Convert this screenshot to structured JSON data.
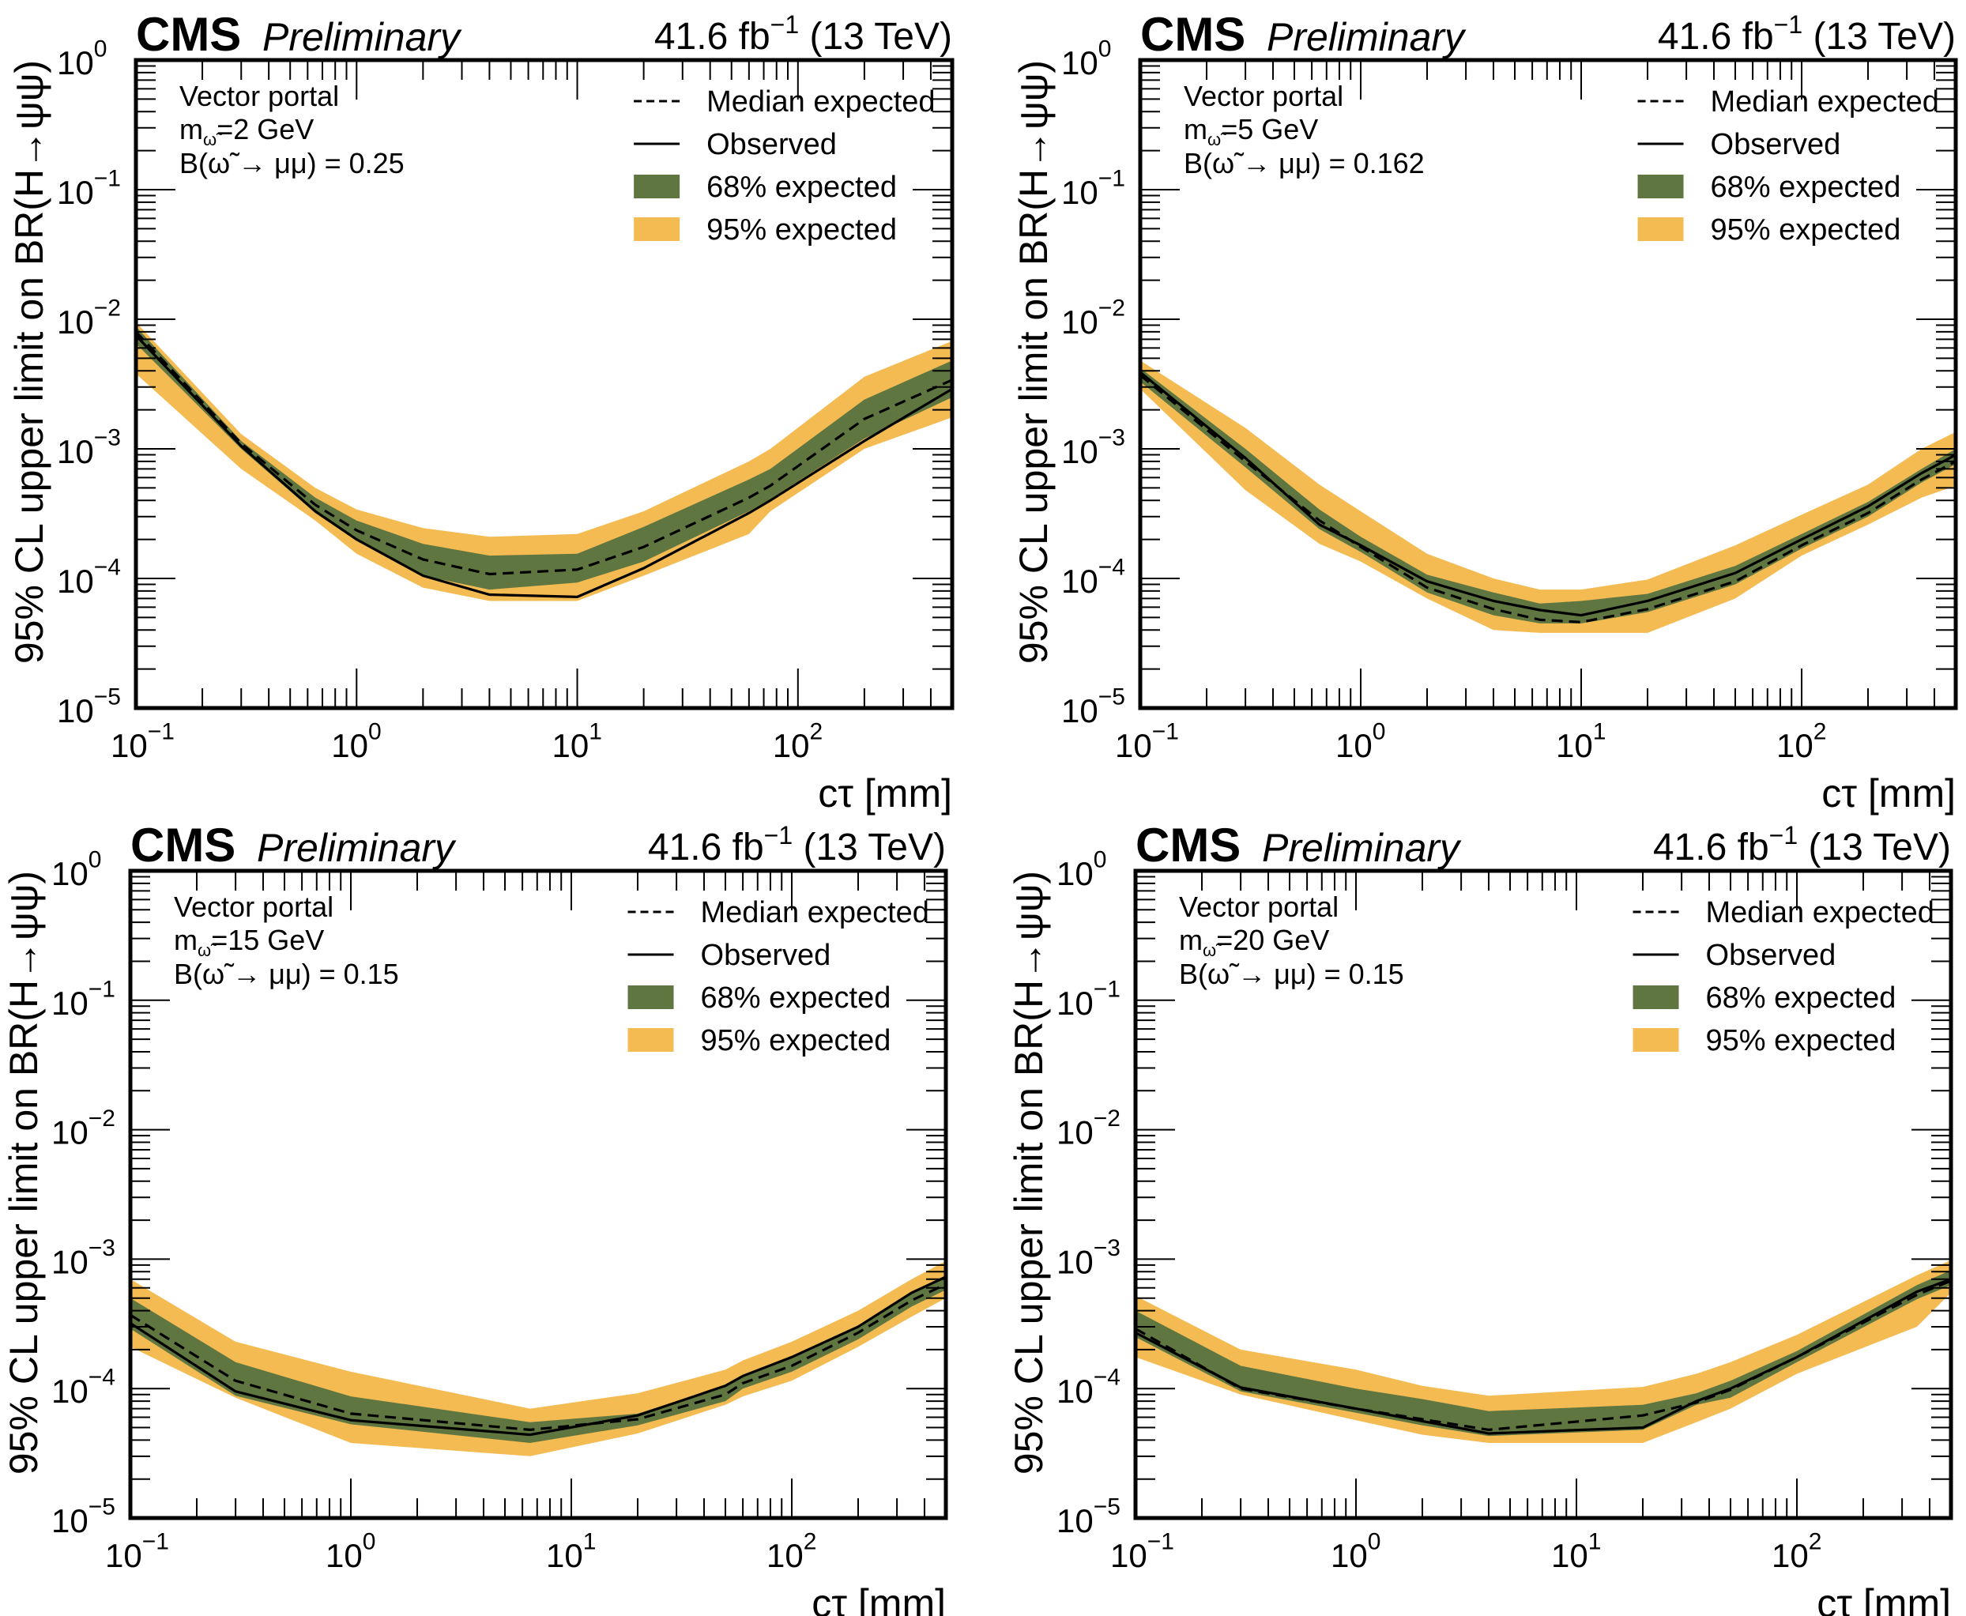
{
  "figure": {
    "experiment_label": "CMS",
    "status_label": "Preliminary",
    "lumi_label": "41.6 fb",
    "lumi_exponent": "−1",
    "energy_label": "(13 TeV)",
    "xlabel": "cτ [mm]",
    "ylabel": "95% CL upper limit on BR(H→ψψ)",
    "model_label": "Vector portal",
    "legend": [
      {
        "label": "Median expected",
        "style": "dashed",
        "color": "#000000"
      },
      {
        "label": "Observed",
        "style": "solid",
        "color": "#000000"
      },
      {
        "label": "68% expected",
        "style": "band",
        "color": "#607641"
      },
      {
        "label": "95% expected",
        "style": "band",
        "color": "#F4BB53"
      }
    ],
    "x_tick_labels": [
      {
        "base": "10",
        "exp": "−1"
      },
      {
        "base": "10",
        "exp": "0"
      },
      {
        "base": "10",
        "exp": "1"
      },
      {
        "base": "10",
        "exp": "2"
      }
    ],
    "y_tick_labels": [
      {
        "base": "10",
        "exp": "0"
      },
      {
        "base": "10",
        "exp": "−1"
      },
      {
        "base": "10",
        "exp": "−2"
      },
      {
        "base": "10",
        "exp": "−3"
      },
      {
        "base": "10",
        "exp": "−4"
      },
      {
        "base": "10",
        "exp": "−5"
      }
    ]
  },
  "chart_data": [
    {
      "type": "area",
      "title": "CMS Preliminary — 41.6 fb^-1 (13 TeV)",
      "mass_label": "=2 GeV",
      "br_label": "B(ω̃ → μμ) = 0.25",
      "xlabel": "cτ [mm]",
      "ylabel": "95% CL upper limit on BR(H→ψψ)",
      "xscale": "log",
      "yscale": "log",
      "xlim": [
        0.1,
        500
      ],
      "ylim": [
        1e-05,
        1
      ],
      "legend_position": "top-right",
      "x": [
        0.1,
        0.3,
        0.65,
        1,
        2,
        4,
        10,
        20,
        60,
        75,
        200,
        500
      ],
      "series": [
        {
          "name": "Observed",
          "values": [
            0.0075,
            0.00105,
            0.00033,
            0.0002,
            0.000105,
            7.5e-05,
            7.2e-05,
            0.00012,
            0.00032,
            0.0004,
            0.00115,
            0.0029
          ]
        },
        {
          "name": "Median expected",
          "values": [
            0.008,
            0.0011,
            0.00037,
            0.000235,
            0.00014,
            0.000108,
            0.000117,
            0.000175,
            0.00042,
            0.00052,
            0.0017,
            0.0034
          ]
        },
        {
          "name": "68% expected low",
          "values": [
            0.0065,
            0.001,
            0.00032,
            0.000195,
            0.000105,
            8.2e-05,
            9.3e-05,
            0.000135,
            0.00033,
            0.00041,
            0.0012,
            0.0025
          ]
        },
        {
          "name": "68% expected high",
          "values": [
            0.0088,
            0.00115,
            0.00042,
            0.00028,
            0.000185,
            0.00015,
            0.000155,
            0.00025,
            0.00058,
            0.0007,
            0.0024,
            0.0048
          ]
        },
        {
          "name": "95% expected low",
          "values": [
            0.0038,
            0.0007,
            0.00028,
            0.000155,
            8.5e-05,
            6.7e-05,
            6.7e-05,
            0.000105,
            0.00022,
            0.00033,
            0.001,
            0.00175
          ]
        },
        {
          "name": "95% expected high",
          "values": [
            0.0095,
            0.0013,
            0.0005,
            0.00034,
            0.000245,
            0.00021,
            0.00022,
            0.00033,
            0.0008,
            0.001,
            0.0036,
            0.0068
          ]
        }
      ]
    },
    {
      "type": "area",
      "title": "CMS Preliminary — 41.6 fb^-1 (13 TeV)",
      "mass_label": "=5 GeV",
      "br_label": "B(ω̃ → μμ) = 0.162",
      "xlabel": "cτ [mm]",
      "ylabel": "95% CL upper limit on BR(H→ψψ)",
      "xscale": "log",
      "yscale": "log",
      "xlim": [
        0.1,
        500
      ],
      "ylim": [
        1e-05,
        1
      ],
      "legend_position": "top-right",
      "x": [
        0.1,
        0.3,
        0.65,
        1,
        2,
        4,
        6.5,
        10,
        20,
        50,
        100,
        200,
        350,
        500
      ],
      "series": [
        {
          "name": "Observed",
          "values": [
            0.0039,
            0.00085,
            0.00026,
            0.00018,
            9.5e-05,
            6.7e-05,
            5.7e-05,
            5.2e-05,
            6.7e-05,
            0.00011,
            0.0002,
            0.00036,
            0.00065,
            0.0009
          ]
        },
        {
          "name": "Median expected",
          "values": [
            0.0037,
            0.0008,
            0.00028,
            0.000175,
            8.5e-05,
            5.8e-05,
            4.8e-05,
            4.6e-05,
            5.8e-05,
            9.5e-05,
            0.00018,
            0.00032,
            0.00058,
            0.0008
          ]
        },
        {
          "name": "68% expected low",
          "values": [
            0.0033,
            0.00072,
            0.00024,
            0.00016,
            7.8e-05,
            5.2e-05,
            4.5e-05,
            4.5e-05,
            5.5e-05,
            9e-05,
            0.00017,
            0.0003,
            0.00055,
            0.00076
          ]
        },
        {
          "name": "68% expected high",
          "values": [
            0.0042,
            0.001,
            0.00034,
            0.00021,
            0.000107,
            7.8e-05,
            6.4e-05,
            6.7e-05,
            7.6e-05,
            0.000125,
            0.00022,
            0.00039,
            0.0007,
            0.001
          ]
        },
        {
          "name": "95% expected low",
          "values": [
            0.0029,
            0.00048,
            0.000185,
            0.000135,
            7e-05,
            4e-05,
            3.8e-05,
            3.8e-05,
            3.8e-05,
            7e-05,
            0.00015,
            0.00026,
            0.00042,
            0.00052
          ]
        },
        {
          "name": "95% expected high",
          "values": [
            0.0048,
            0.00145,
            0.00053,
            0.00033,
            0.000155,
            0.0001,
            8.2e-05,
            8.2e-05,
            9.8e-05,
            0.00018,
            0.00031,
            0.00053,
            0.001,
            0.00135
          ]
        }
      ]
    },
    {
      "type": "area",
      "title": "CMS Preliminary — 41.6 fb^-1 (13 TeV)",
      "mass_label": "=15 GeV",
      "br_label": "B(ω̃ → μμ) = 0.15",
      "xlabel": "cτ [mm]",
      "ylabel": "95% CL upper limit on BR(H→ψψ)",
      "xscale": "log",
      "yscale": "log",
      "xlim": [
        0.1,
        500
      ],
      "ylim": [
        1e-05,
        1
      ],
      "legend_position": "top-right",
      "x": [
        0.1,
        0.3,
        1,
        6.5,
        20,
        50,
        60,
        100,
        200,
        350,
        500
      ],
      "series": [
        {
          "name": "Observed",
          "values": [
            0.00032,
            9.5e-05,
            5.7e-05,
            4.4e-05,
            6.2e-05,
            0.000105,
            0.000125,
            0.000175,
            0.0003,
            0.00055,
            0.00073
          ]
        },
        {
          "name": "Median expected",
          "values": [
            0.00037,
            0.000115,
            6.4e-05,
            4.8e-05,
            5.8e-05,
            9e-05,
            0.00011,
            0.00015,
            0.00027,
            0.00048,
            0.00064
          ]
        },
        {
          "name": "68% expected low",
          "values": [
            0.00029,
            8.8e-05,
            5.3e-05,
            3.8e-05,
            5.2e-05,
            8e-05,
            0.0001,
            0.000135,
            0.00024,
            0.00043,
            0.00058
          ]
        },
        {
          "name": "68% expected high",
          "values": [
            0.0005,
            0.00016,
            8.7e-05,
            5.5e-05,
            6.4e-05,
            0.000105,
            0.000125,
            0.000175,
            0.0003,
            0.00055,
            0.00075
          ]
        },
        {
          "name": "95% expected low",
          "values": [
            0.00021,
            8.5e-05,
            3.8e-05,
            3e-05,
            4.5e-05,
            7.5e-05,
            8.7e-05,
            0.000115,
            0.00021,
            0.00036,
            0.0005
          ]
        },
        {
          "name": "95% expected high",
          "values": [
            0.0007,
            0.00023,
            0.000135,
            7e-05,
            9.2e-05,
            0.00014,
            0.000165,
            0.00023,
            0.0004,
            0.0007,
            0.00097
          ]
        }
      ]
    },
    {
      "type": "area",
      "title": "CMS Preliminary — 41.6 fb^-1 (13 TeV)",
      "mass_label": "=20 GeV",
      "br_label": "B(ω̃ → μμ) = 0.15",
      "xlabel": "cτ [mm]",
      "ylabel": "95% CL upper limit on BR(H→ψψ)",
      "xscale": "log",
      "yscale": "log",
      "xlim": [
        0.1,
        500
      ],
      "ylim": [
        1e-05,
        1
      ],
      "legend_position": "top-right",
      "x": [
        0.1,
        0.3,
        1,
        2,
        4,
        20,
        35,
        50,
        100,
        350,
        500
      ],
      "series": [
        {
          "name": "Observed",
          "values": [
            0.00027,
            0.000102,
            7e-05,
            5.6e-05,
            4.5e-05,
            5e-05,
            8e-05,
            0.0001,
            0.000175,
            0.00056,
            0.0007
          ]
        },
        {
          "name": "Median expected",
          "values": [
            0.00029,
            0.0001,
            7e-05,
            5.8e-05,
            4.8e-05,
            6.2e-05,
            7.8e-05,
            9.8e-05,
            0.000175,
            0.00053,
            0.00068
          ]
        },
        {
          "name": "68% expected low",
          "values": [
            0.00025,
            9.5e-05,
            6.5e-05,
            5.2e-05,
            4.3e-05,
            4.8e-05,
            7.5e-05,
            8.5e-05,
            0.00016,
            0.00049,
            0.00063
          ]
        },
        {
          "name": "68% expected high",
          "values": [
            0.0004,
            0.00015,
            0.0001,
            8.3e-05,
            6.7e-05,
            7.5e-05,
            9.2e-05,
            0.000115,
            0.000195,
            0.00063,
            0.00082
          ]
        },
        {
          "name": "95% expected low",
          "values": [
            0.000175,
            9e-05,
            5.7e-05,
            4.4e-05,
            3.8e-05,
            3.8e-05,
            5.5e-05,
            7e-05,
            0.00013,
            0.0003,
            0.00055
          ]
        },
        {
          "name": "95% expected high",
          "values": [
            0.00052,
            0.0002,
            0.00014,
            0.000105,
            8.8e-05,
            0.000103,
            0.00013,
            0.00016,
            0.00026,
            0.00075,
            0.00098
          ]
        }
      ]
    }
  ]
}
